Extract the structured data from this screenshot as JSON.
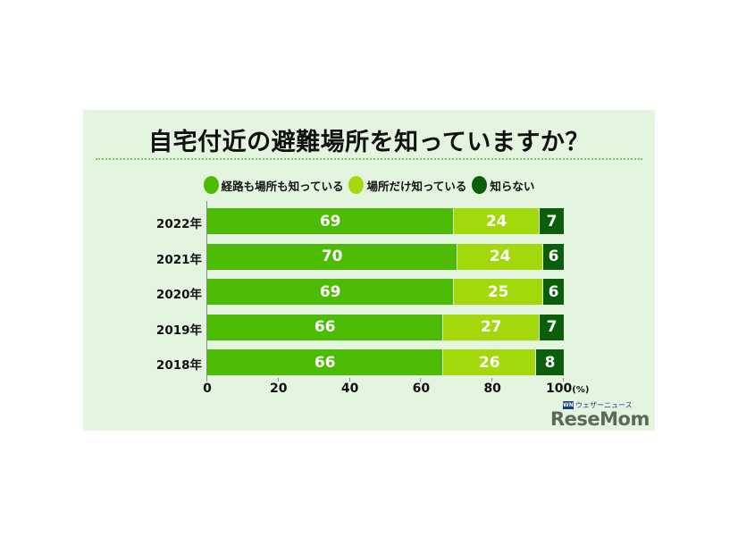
{
  "title": "自宅付近の避難場所を知っていますか？",
  "legend": [
    {
      "label": "経路も場所も知っている",
      "color": "#4cbb04"
    },
    {
      "label": "場所だけ知っている",
      "color": "#a3d80a"
    },
    {
      "label": "知らない",
      "color": "#0b5e0b"
    }
  ],
  "rows": [
    {
      "year": "2022年",
      "values": [
        "69",
        "24",
        "7"
      ]
    },
    {
      "year": "2021年",
      "values": [
        "70",
        "24",
        "6"
      ]
    },
    {
      "year": "2020年",
      "values": [
        "69",
        "25",
        "6"
      ]
    },
    {
      "year": "2019年",
      "values": [
        "66",
        "27",
        "7"
      ]
    },
    {
      "year": "2018年",
      "values": [
        "66",
        "26",
        "8"
      ]
    }
  ],
  "x_axis": {
    "ticks": [
      "0",
      "20",
      "40",
      "60",
      "80",
      "100"
    ],
    "unit": "(%)"
  },
  "logo": {
    "brand": "ReseMom",
    "partner": "ウェザーニュース",
    "partner_badge": "WN"
  },
  "chart_data": {
    "type": "bar",
    "orientation": "horizontal",
    "stacked": true,
    "title": "自宅付近の避難場所を知っていますか？",
    "categories": [
      "2022年",
      "2021年",
      "2020年",
      "2019年",
      "2018年"
    ],
    "series": [
      {
        "name": "経路も場所も知っている",
        "color": "#4cbb04",
        "values": [
          69,
          70,
          69,
          66,
          66
        ]
      },
      {
        "name": "場所だけ知っている",
        "color": "#a3d80a",
        "values": [
          24,
          24,
          25,
          27,
          26
        ]
      },
      {
        "name": "知らない",
        "color": "#0b5e0b",
        "values": [
          7,
          6,
          6,
          7,
          8
        ]
      }
    ],
    "xlabel": "(%)",
    "ylabel": "",
    "xlim": [
      0,
      100
    ],
    "xticks": [
      0,
      20,
      40,
      60,
      80,
      100
    ],
    "grid": false,
    "legend_position": "top",
    "data_labels": true
  }
}
